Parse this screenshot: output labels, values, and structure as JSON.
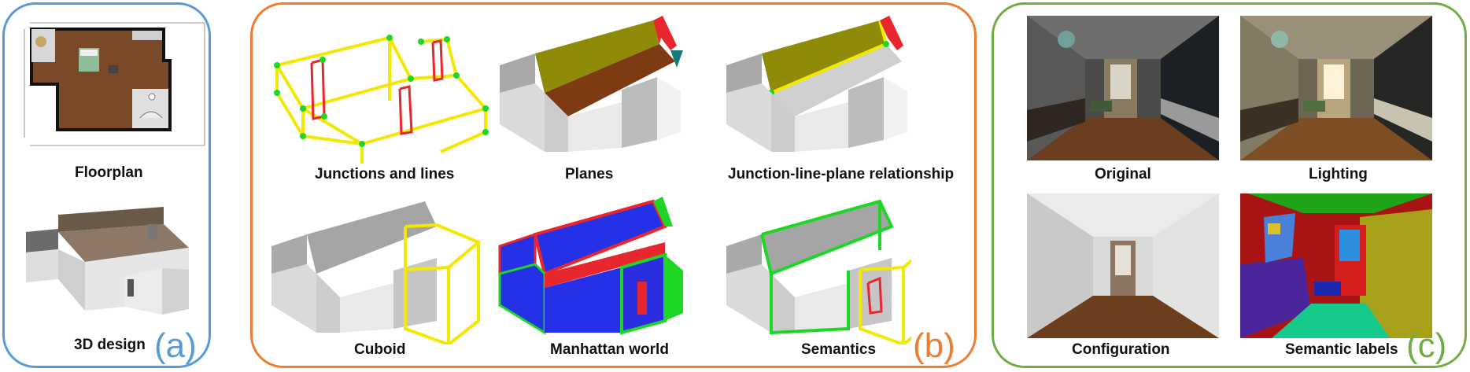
{
  "panel_a": {
    "tag": "(a)",
    "color": "#5b9bd5",
    "captions": {
      "floorplan": "Floorplan",
      "design3d": "3D design"
    }
  },
  "panel_b": {
    "tag": "(b)",
    "color": "#ed7d31",
    "captions": {
      "junctions": "Junctions and lines",
      "planes": "Planes",
      "relationship": "Junction-line-plane relationship",
      "cuboid": "Cuboid",
      "manhattan": "Manhattan world",
      "semantics": "Semantics"
    }
  },
  "panel_c": {
    "tag": "(c)",
    "color": "#70ad47",
    "captions": {
      "original": "Original",
      "lighting": "Lighting",
      "configuration": "Configuration",
      "semantic_labels": "Semantic labels"
    }
  }
}
